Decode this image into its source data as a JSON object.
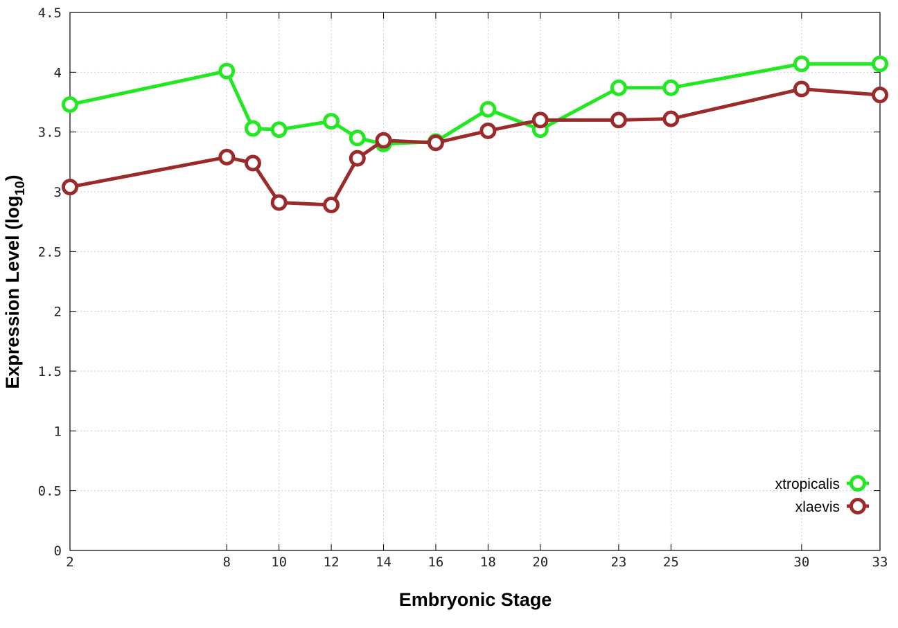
{
  "chart_data": {
    "type": "line",
    "xlabel": "Embryonic Stage",
    "ylabel_main": "Expression Level (log",
    "ylabel_sub": "10",
    "ylabel_close": ")",
    "xlim": [
      2,
      33
    ],
    "ylim": [
      0,
      4.5
    ],
    "x_ticks": [
      2,
      8,
      10,
      12,
      14,
      16,
      18,
      20,
      23,
      25,
      30,
      33
    ],
    "y_ticks": [
      {
        "v": 0,
        "label": "0"
      },
      {
        "v": 0.5,
        "label": "0.5"
      },
      {
        "v": 1,
        "label": "1"
      },
      {
        "v": 1.5,
        "label": "1.5"
      },
      {
        "v": 2,
        "label": "2"
      },
      {
        "v": 2.5,
        "label": "2.5"
      },
      {
        "v": 3,
        "label": "3"
      },
      {
        "v": 3.5,
        "label": "3.5"
      },
      {
        "v": 4,
        "label": "4"
      },
      {
        "v": 4.5,
        "label": "4.5"
      }
    ],
    "grid": true,
    "legend_position": "bottom-right",
    "series": [
      {
        "name": "xtropicalis",
        "color": "#22e822",
        "x": [
          2,
          8,
          9,
          10,
          12,
          13,
          14,
          16,
          18,
          20,
          23,
          25,
          30,
          33
        ],
        "y": [
          3.73,
          4.01,
          3.53,
          3.52,
          3.59,
          3.45,
          3.4,
          3.42,
          3.69,
          3.52,
          3.87,
          3.87,
          4.07,
          4.07
        ]
      },
      {
        "name": "xlaevis",
        "color": "#9b2a2a",
        "x": [
          2,
          8,
          9,
          10,
          12,
          13,
          14,
          16,
          18,
          20,
          23,
          25,
          30,
          33
        ],
        "y": [
          3.04,
          3.29,
          3.24,
          2.91,
          2.89,
          3.28,
          3.43,
          3.41,
          3.51,
          3.6,
          3.6,
          3.61,
          3.86,
          3.81
        ]
      }
    ]
  }
}
